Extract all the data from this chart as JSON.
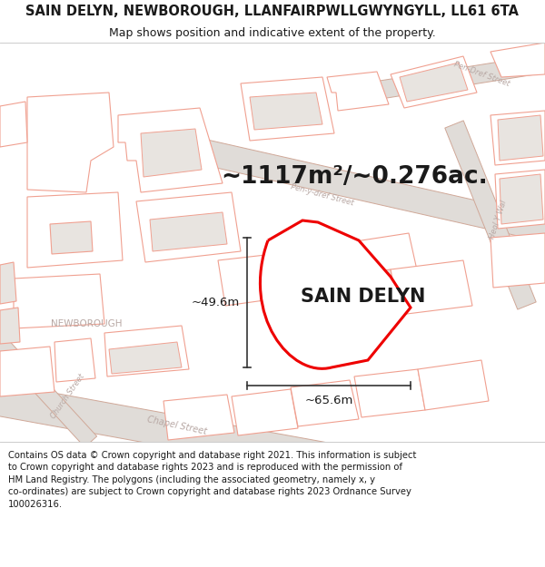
{
  "title_line1": "SAIN DELYN, NEWBOROUGH, LLANFAIRPWLLGWYNGYLL, LL61 6TA",
  "title_line2": "Map shows position and indicative extent of the property.",
  "area_label": "~1117m²/~0.276ac.",
  "property_name": "SAIN DELYN",
  "dim_width": "~65.6m",
  "dim_height": "~49.6m",
  "footer_text": "Contains OS data © Crown copyright and database right 2021. This information is subject to Crown copyright and database rights 2023 and is reproduced with the permission of HM Land Registry. The polygons (including the associated geometry, namely x, y co-ordinates) are subject to Crown copyright and database rights 2023 Ordnance Survey 100026316.",
  "bg_color": "#ffffff",
  "map_bg": "#ffffff",
  "plot_fill": "#ffffff",
  "plot_stroke": "#ee0000",
  "road_fill": "#e8e8e8",
  "road_edge": "#c8a8a0",
  "building_stroke": "#f0a090",
  "building_fill": "#ffffff",
  "building_fill_gray": "#e8e4e0",
  "text_color_dark": "#1a1a1a",
  "text_color_gray": "#b0a0a0",
  "title_fontsize": 10.5,
  "subtitle_fontsize": 9,
  "area_fontsize": 19,
  "property_fontsize": 15,
  "dim_fontsize": 9.5,
  "footer_fontsize": 7.2
}
